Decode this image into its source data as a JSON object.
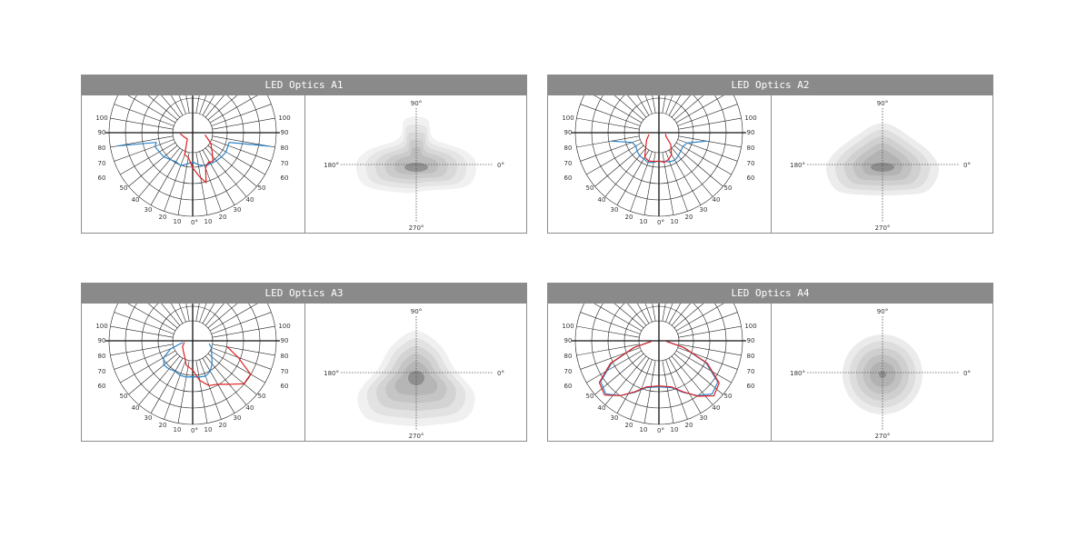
{
  "panels": [
    {
      "title": "LED Optics A1",
      "polar": {
        "left_labels": [
          "100",
          "90",
          "80",
          "70",
          "60",
          "50",
          "40",
          "30",
          "20",
          "10"
        ],
        "right_labels": [
          "100",
          "90",
          "80",
          "70",
          "60",
          "50",
          "40",
          "30",
          "20",
          "10"
        ],
        "bottom_label": "0°",
        "curves": [
          {
            "color": "#2a84c9",
            "points": [
              [
                -80,
                0.92
              ],
              [
                -75,
                0.45
              ],
              [
                -70,
                0.48
              ],
              [
                -60,
                0.46
              ],
              [
                -50,
                0.45
              ],
              [
                -40,
                0.42
              ],
              [
                -30,
                0.4
              ],
              [
                -20,
                0.42
              ],
              [
                -10,
                0.38
              ],
              [
                0,
                0.35
              ],
              [
                10,
                0.39
              ],
              [
                20,
                0.42
              ],
              [
                30,
                0.43
              ],
              [
                40,
                0.44
              ],
              [
                50,
                0.45
              ],
              [
                60,
                0.46
              ],
              [
                70,
                0.45
              ],
              [
                75,
                0.45
              ],
              [
                80,
                0.93
              ]
            ]
          },
          {
            "color": "#dd1f1f",
            "points": [
              [
                -85,
                0.15
              ],
              [
                -60,
                0.11
              ],
              [
                -40,
                0.1
              ],
              [
                -20,
                0.28
              ],
              [
                -10,
                0.3
              ],
              [
                0,
                0.42
              ],
              [
                8,
                0.52
              ],
              [
                15,
                0.62
              ],
              [
                20,
                0.45
              ],
              [
                28,
                0.4
              ],
              [
                35,
                0.42
              ],
              [
                45,
                0.33
              ],
              [
                60,
                0.25
              ],
              [
                80,
                0.15
              ]
            ]
          }
        ]
      },
      "iso": {
        "top": "90°",
        "bottom": "270°",
        "left": "180°",
        "right": "0°",
        "shape": "a1",
        "fills": [
          "#f1f1f1",
          "#e5e5e5",
          "#d8d8d8",
          "#cbcbcb",
          "#bdbdbd",
          "#929292"
        ]
      }
    },
    {
      "title": "LED Optics A2",
      "polar": {
        "left_labels": [
          "100",
          "90",
          "80",
          "70",
          "60",
          "50",
          "40",
          "30",
          "20",
          "10"
        ],
        "right_labels": [
          "100",
          "90",
          "80",
          "70",
          "60",
          "50",
          "40",
          "30",
          "20",
          "10"
        ],
        "bottom_label": "0°",
        "curves": [
          {
            "color": "#2a84c9",
            "points": [
              [
                -80,
                0.58
              ],
              [
                -70,
                0.34
              ],
              [
                -60,
                0.32
              ],
              [
                -50,
                0.34
              ],
              [
                -40,
                0.36
              ],
              [
                -30,
                0.36
              ],
              [
                -20,
                0.38
              ],
              [
                -10,
                0.36
              ],
              [
                0,
                0.34
              ],
              [
                10,
                0.35
              ],
              [
                20,
                0.37
              ],
              [
                30,
                0.38
              ],
              [
                40,
                0.36
              ],
              [
                50,
                0.34
              ],
              [
                60,
                0.33
              ],
              [
                70,
                0.36
              ],
              [
                80,
                0.58
              ]
            ]
          },
          {
            "color": "#dd1f1f",
            "points": [
              [
                -80,
                0.12
              ],
              [
                -60,
                0.17
              ],
              [
                -45,
                0.22
              ],
              [
                -30,
                0.34
              ],
              [
                -20,
                0.36
              ],
              [
                -10,
                0.35
              ],
              [
                0,
                0.34
              ],
              [
                10,
                0.36
              ],
              [
                20,
                0.34
              ],
              [
                30,
                0.3
              ],
              [
                45,
                0.2
              ],
              [
                60,
                0.1
              ],
              [
                80,
                0.08
              ]
            ]
          }
        ]
      },
      "iso": {
        "top": "90°",
        "bottom": "270°",
        "left": "180°",
        "right": "0°",
        "shape": "a2",
        "fills": [
          "#ececec",
          "#dedede",
          "#d0d0d0",
          "#c2c2c2",
          "#b3b3b3",
          "#8e8e8e"
        ]
      }
    },
    {
      "title": "LED Optics A3",
      "polar": {
        "left_labels": [
          "100",
          "90",
          "80",
          "70",
          "60",
          "50",
          "40",
          "30",
          "20",
          "10"
        ],
        "right_labels": [
          "100",
          "90",
          "80",
          "70",
          "60",
          "50",
          "40",
          "30",
          "20",
          "10"
        ],
        "bottom_label": "0°",
        "curves": [
          {
            "color": "#2a84c9",
            "points": [
              [
                -80,
                0.12
              ],
              [
                -70,
                0.28
              ],
              [
                -60,
                0.4
              ],
              [
                -50,
                0.45
              ],
              [
                -40,
                0.44
              ],
              [
                -30,
                0.42
              ],
              [
                -20,
                0.44
              ],
              [
                -10,
                0.44
              ],
              [
                0,
                0.43
              ],
              [
                10,
                0.44
              ],
              [
                20,
                0.45
              ],
              [
                30,
                0.42
              ],
              [
                40,
                0.36
              ],
              [
                50,
                0.3
              ],
              [
                60,
                0.26
              ],
              [
                70,
                0.24
              ],
              [
                80,
                0.2
              ]
            ]
          },
          {
            "color": "#dd1f1f",
            "points": [
              [
                -80,
                0.1
              ],
              [
                -60,
                0.14
              ],
              [
                -40,
                0.17
              ],
              [
                -25,
                0.22
              ],
              [
                -15,
                0.3
              ],
              [
                0,
                0.35
              ],
              [
                10,
                0.48
              ],
              [
                20,
                0.57
              ],
              [
                30,
                0.6
              ],
              [
                40,
                0.68
              ],
              [
                50,
                0.8
              ],
              [
                60,
                0.8
              ],
              [
                70,
                0.58
              ],
              [
                80,
                0.42
              ]
            ]
          }
        ]
      },
      "iso": {
        "top": "90°",
        "bottom": "270°",
        "left": "180°",
        "right": "0°",
        "shape": "a3",
        "fills": [
          "#f0f0f0",
          "#e2e2e2",
          "#d3d3d3",
          "#c5c5c5",
          "#b6b6b6",
          "#8f8f8f"
        ]
      }
    },
    {
      "title": "LED Optics A4",
      "polar": {
        "left_labels": [
          "100",
          "90",
          "80",
          "70",
          "60",
          "50",
          "40",
          "30",
          "20",
          "10"
        ],
        "right_labels": [
          "100",
          "90",
          "80",
          "70",
          "60",
          "50",
          "40",
          "30",
          "20",
          "10"
        ],
        "bottom_label": "0°",
        "curves": [
          {
            "color": "#2a84c9",
            "points": [
              [
                -85,
                0.1
              ],
              [
                -75,
                0.3
              ],
              [
                -65,
                0.62
              ],
              [
                -55,
                0.85
              ],
              [
                -45,
                0.9
              ],
              [
                -35,
                0.8
              ],
              [
                -25,
                0.68
              ],
              [
                -15,
                0.58
              ],
              [
                0,
                0.55
              ],
              [
                15,
                0.58
              ],
              [
                25,
                0.68
              ],
              [
                35,
                0.8
              ],
              [
                45,
                0.9
              ],
              [
                55,
                0.86
              ],
              [
                65,
                0.62
              ],
              [
                75,
                0.3
              ],
              [
                85,
                0.1
              ]
            ]
          },
          {
            "color": "#dd1f1f",
            "points": [
              [
                -85,
                0.09
              ],
              [
                -75,
                0.31
              ],
              [
                -65,
                0.64
              ],
              [
                -55,
                0.87
              ],
              [
                -45,
                0.92
              ],
              [
                -35,
                0.8
              ],
              [
                -25,
                0.67
              ],
              [
                -15,
                0.57
              ],
              [
                0,
                0.54
              ],
              [
                15,
                0.57
              ],
              [
                25,
                0.67
              ],
              [
                35,
                0.81
              ],
              [
                45,
                0.93
              ],
              [
                55,
                0.88
              ],
              [
                65,
                0.64
              ],
              [
                75,
                0.31
              ],
              [
                85,
                0.09
              ]
            ]
          }
        ]
      },
      "iso": {
        "top": "90°",
        "bottom": "270°",
        "left": "180°",
        "right": "0°",
        "shape": "a4",
        "fills": [
          "#ebebeb",
          "#dddddd",
          "#cfcfcf",
          "#c1c1c1",
          "#b2b2b2",
          "#8f8f8f"
        ]
      }
    }
  ]
}
